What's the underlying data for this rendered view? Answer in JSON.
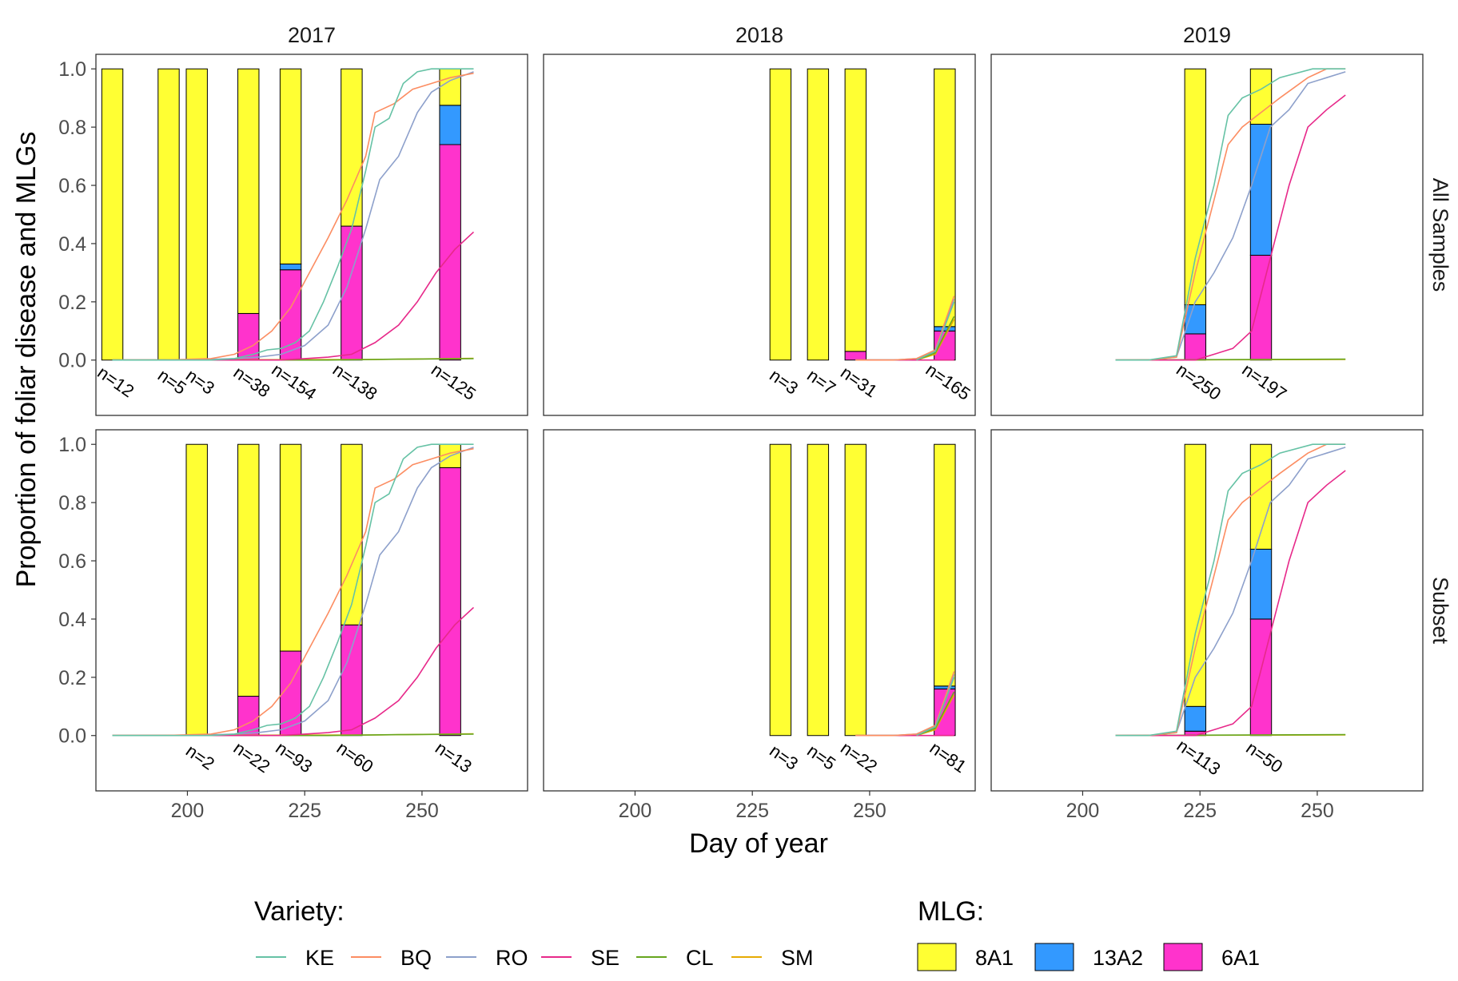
{
  "chart_data": {
    "type": "bar+line faceted",
    "xlabel": "Day of year",
    "ylabel": "Proportion of foliar disease and MLGs",
    "x_ticks": [
      200,
      225,
      250
    ],
    "y_ticks": [
      "0.0",
      "0.2",
      "0.4",
      "0.6",
      "0.8",
      "1.0"
    ],
    "ylim": [
      -0.19,
      1.05
    ],
    "columns": [
      {
        "year": "2017",
        "xlim": [
          180.5,
          272.5
        ]
      },
      {
        "year": "2018",
        "xlim": [
          180.5,
          272.5
        ]
      },
      {
        "year": "2019",
        "xlim": [
          180.5,
          272.5
        ]
      }
    ],
    "rows": [
      "All Samples",
      "Subset"
    ],
    "mlg_legend": {
      "title": "MLG:",
      "items": [
        {
          "name": "8A1",
          "color": "#FFFF33"
        },
        {
          "name": "13A2",
          "color": "#3399FF"
        },
        {
          "name": "6A1",
          "color": "#FF33CC"
        }
      ]
    },
    "variety_legend": {
      "title": "Variety:",
      "items": [
        {
          "name": "KE",
          "color": "#66C2A5"
        },
        {
          "name": "BQ",
          "color": "#FC8D62"
        },
        {
          "name": "RO",
          "color": "#8DA0CB"
        },
        {
          "name": "SE",
          "color": "#E7298A"
        },
        {
          "name": "CL",
          "color": "#66A61E"
        },
        {
          "name": "SM",
          "color": "#E6AB02"
        }
      ]
    },
    "bars": [
      [
        [
          {
            "x": 184,
            "n": "n=12",
            "p6A1": 0.0,
            "p13A2": 0.0
          },
          {
            "x": 196,
            "n": "n=5",
            "p6A1": 0.0,
            "p13A2": 0.0
          },
          {
            "x": 202,
            "n": "n=3",
            "p6A1": 0.0,
            "p13A2": 0.0
          },
          {
            "x": 213,
            "n": "n=38",
            "p6A1": 0.16,
            "p13A2": 0.0
          },
          {
            "x": 222,
            "n": "n=154",
            "p6A1": 0.31,
            "p13A2": 0.02
          },
          {
            "x": 235,
            "n": "n=138",
            "p6A1": 0.46,
            "p13A2": 0.0
          },
          {
            "x": 256,
            "n": "n=125",
            "p6A1": 0.74,
            "p13A2": 0.135
          }
        ],
        [
          {
            "x": 231,
            "n": "n=3",
            "p6A1": 0.0,
            "p13A2": 0.0
          },
          {
            "x": 239,
            "n": "n=7",
            "p6A1": 0.0,
            "p13A2": 0.0
          },
          {
            "x": 247,
            "n": "n=31",
            "p6A1": 0.03,
            "p13A2": 0.0
          },
          {
            "x": 266,
            "n": "n=165",
            "p6A1": 0.1,
            "p13A2": 0.015
          }
        ],
        [
          {
            "x": 224,
            "n": "n=250",
            "p6A1": 0.09,
            "p13A2": 0.1
          },
          {
            "x": 238,
            "n": "n=197",
            "p6A1": 0.36,
            "p13A2": 0.45
          }
        ]
      ],
      [
        [
          {
            "x": 202,
            "n": "n=2",
            "p6A1": 0.0,
            "p13A2": 0.0
          },
          {
            "x": 213,
            "n": "n=22",
            "p6A1": 0.135,
            "p13A2": 0.0
          },
          {
            "x": 222,
            "n": "n=93",
            "p6A1": 0.29,
            "p13A2": 0.0
          },
          {
            "x": 235,
            "n": "n=60",
            "p6A1": 0.38,
            "p13A2": 0.0
          },
          {
            "x": 256,
            "n": "n=13",
            "p6A1": 0.92,
            "p13A2": 0.0
          }
        ],
        [
          {
            "x": 231,
            "n": "n=3",
            "p6A1": 0.0,
            "p13A2": 0.0
          },
          {
            "x": 239,
            "n": "n=5",
            "p6A1": 0.0,
            "p13A2": 0.0
          },
          {
            "x": 247,
            "n": "n=22",
            "p6A1": 0.0,
            "p13A2": 0.0
          },
          {
            "x": 266,
            "n": "n=81",
            "p6A1": 0.16,
            "p13A2": 0.01
          }
        ],
        [
          {
            "x": 224,
            "n": "n=113",
            "p6A1": 0.015,
            "p13A2": 0.085
          },
          {
            "x": 238,
            "n": "n=50",
            "p6A1": 0.4,
            "p13A2": 0.24
          }
        ]
      ]
    ],
    "lines": [
      {
        "KE": [
          [
            184,
            0
          ],
          [
            195,
            0
          ],
          [
            200,
            0
          ],
          [
            205,
            0
          ],
          [
            210,
            0.005
          ],
          [
            214,
            0.02
          ],
          [
            217,
            0.035
          ],
          [
            220,
            0.04
          ],
          [
            223,
            0.06
          ],
          [
            226,
            0.1
          ],
          [
            229,
            0.2
          ],
          [
            232,
            0.32
          ],
          [
            235,
            0.45
          ],
          [
            238,
            0.65
          ],
          [
            240,
            0.8
          ],
          [
            243,
            0.83
          ],
          [
            246,
            0.95
          ],
          [
            249,
            0.99
          ],
          [
            252,
            1
          ],
          [
            256,
            1
          ],
          [
            261,
            1
          ]
        ],
        "BQ": [
          [
            184,
            0
          ],
          [
            195,
            0
          ],
          [
            205,
            0.005
          ],
          [
            210,
            0.02
          ],
          [
            214,
            0.05
          ],
          [
            218,
            0.1
          ],
          [
            222,
            0.18
          ],
          [
            226,
            0.3
          ],
          [
            230,
            0.42
          ],
          [
            234,
            0.55
          ],
          [
            238,
            0.7
          ],
          [
            240,
            0.85
          ],
          [
            244,
            0.88
          ],
          [
            248,
            0.93
          ],
          [
            252,
            0.95
          ],
          [
            256,
            0.97
          ],
          [
            261,
            0.985
          ]
        ],
        "RO": [
          [
            184,
            0
          ],
          [
            200,
            0
          ],
          [
            210,
            0.005
          ],
          [
            215,
            0.01
          ],
          [
            220,
            0.02
          ],
          [
            225,
            0.05
          ],
          [
            230,
            0.12
          ],
          [
            234,
            0.25
          ],
          [
            238,
            0.45
          ],
          [
            241,
            0.62
          ],
          [
            245,
            0.7
          ],
          [
            249,
            0.85
          ],
          [
            252,
            0.92
          ],
          [
            256,
            0.96
          ],
          [
            261,
            0.99
          ]
        ],
        "SE": [
          [
            184,
            0
          ],
          [
            210,
            0
          ],
          [
            220,
            0
          ],
          [
            225,
            0.005
          ],
          [
            230,
            0.01
          ],
          [
            235,
            0.02
          ],
          [
            240,
            0.06
          ],
          [
            245,
            0.12
          ],
          [
            249,
            0.2
          ],
          [
            253,
            0.3
          ],
          [
            257,
            0.38
          ],
          [
            261,
            0.44
          ]
        ],
        "CL": [
          [
            184,
            0
          ],
          [
            230,
            0
          ],
          [
            245,
            0.003
          ],
          [
            261,
            0.005
          ]
        ],
        "SM": [
          [
            184,
            0
          ],
          [
            240,
            0.002
          ],
          [
            261,
            0.006
          ]
        ]
      },
      {
        "KE": [
          [
            260,
            0
          ],
          [
            264,
            0.03
          ],
          [
            268,
            0.2
          ]
        ],
        "BQ": [
          [
            247,
            0
          ],
          [
            255,
            0
          ],
          [
            260,
            0.005
          ],
          [
            264,
            0.035
          ],
          [
            268,
            0.22
          ]
        ],
        "RO": [
          [
            247,
            0
          ],
          [
            255,
            0
          ],
          [
            260,
            0.005
          ],
          [
            264,
            0.03
          ],
          [
            268,
            0.21
          ]
        ],
        "SE": [
          [
            247,
            0
          ],
          [
            268,
            0
          ]
        ],
        "CL": [
          [
            247,
            0
          ],
          [
            260,
            0
          ],
          [
            264,
            0.025
          ],
          [
            268,
            0.15
          ]
        ],
        "SM": [
          [
            247,
            0
          ],
          [
            260,
            0
          ],
          [
            264,
            0.02
          ],
          [
            268,
            0.14
          ]
        ]
      },
      {
        "KE": [
          [
            207,
            0
          ],
          [
            214,
            0
          ],
          [
            220,
            0.015
          ],
          [
            224,
            0.35
          ],
          [
            228,
            0.6
          ],
          [
            231,
            0.84
          ],
          [
            234,
            0.9
          ],
          [
            238,
            0.93
          ],
          [
            242,
            0.97
          ],
          [
            249,
            1
          ],
          [
            256,
            1
          ]
        ],
        "BQ": [
          [
            207,
            0
          ],
          [
            214,
            0
          ],
          [
            220,
            0.01
          ],
          [
            224,
            0.3
          ],
          [
            228,
            0.55
          ],
          [
            231,
            0.74
          ],
          [
            234,
            0.8
          ],
          [
            238,
            0.85
          ],
          [
            242,
            0.9
          ],
          [
            248,
            0.97
          ],
          [
            252,
            1
          ],
          [
            256,
            1
          ]
        ],
        "RO": [
          [
            207,
            0
          ],
          [
            214,
            0
          ],
          [
            220,
            0.01
          ],
          [
            224,
            0.2
          ],
          [
            228,
            0.3
          ],
          [
            232,
            0.42
          ],
          [
            236,
            0.6
          ],
          [
            240,
            0.8
          ],
          [
            244,
            0.86
          ],
          [
            248,
            0.95
          ],
          [
            252,
            0.97
          ],
          [
            256,
            0.99
          ]
        ],
        "SE": [
          [
            207,
            0
          ],
          [
            224,
            0
          ],
          [
            232,
            0.04
          ],
          [
            236,
            0.1
          ],
          [
            240,
            0.35
          ],
          [
            244,
            0.6
          ],
          [
            248,
            0.8
          ],
          [
            252,
            0.86
          ],
          [
            256,
            0.91
          ]
        ],
        "CL": [
          [
            207,
            0
          ],
          [
            256,
            0.003
          ]
        ],
        "SM": [
          [
            207,
            0
          ],
          [
            256,
            0.002
          ]
        ]
      }
    ]
  }
}
